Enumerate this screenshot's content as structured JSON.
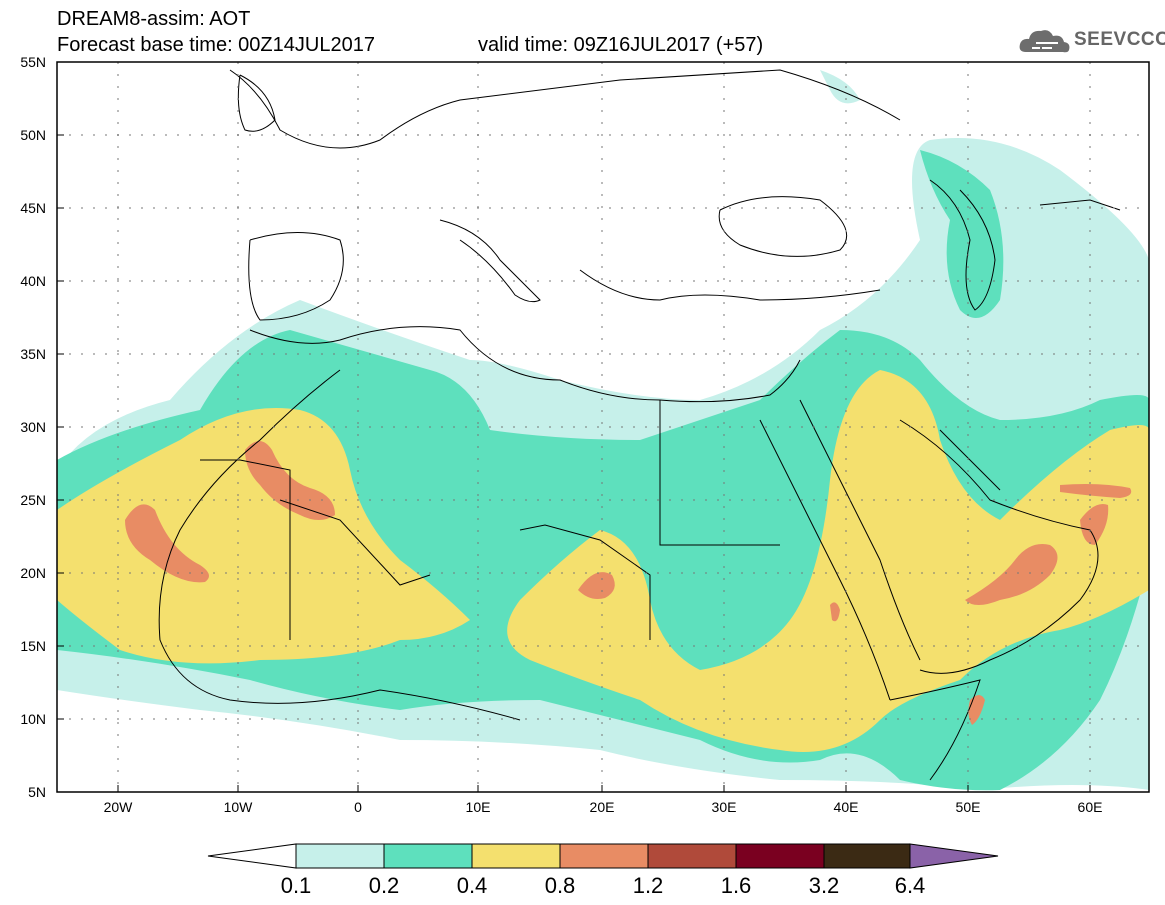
{
  "header": {
    "title": "DREAM8-assim: AOT",
    "base_time": "Forecast base time: 00Z14JUL2017",
    "valid_time": "valid time: 09Z16JUL2017 (+57)",
    "logo_text": "SEEVCCC"
  },
  "axes": {
    "lat_labels": [
      "55N",
      "50N",
      "45N",
      "40N",
      "35N",
      "30N",
      "25N",
      "20N",
      "15N",
      "10N",
      "5N"
    ],
    "lon_labels": [
      "20W",
      "10W",
      "0",
      "10E",
      "20E",
      "30E",
      "40E",
      "50E",
      "60E"
    ]
  },
  "legend": {
    "thresholds": [
      "0.1",
      "0.2",
      "0.4",
      "0.8",
      "1.2",
      "1.6",
      "3.2",
      "6.4"
    ],
    "colors": [
      "#c6f0ea",
      "#5ee0bd",
      "#f4e06e",
      "#e88c64",
      "#b04a3a",
      "#7a0020",
      "#3b2a14",
      "#8a62a8"
    ]
  },
  "chart_data": {
    "type": "heatmap",
    "variable": "AOT",
    "lon_range": [
      -25,
      65
    ],
    "lat_range": [
      5,
      55
    ]
  }
}
